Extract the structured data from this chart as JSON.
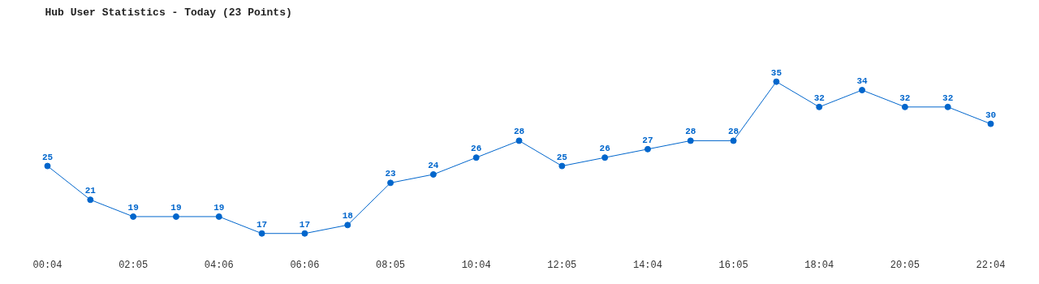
{
  "chart_data": {
    "type": "line",
    "title": "Hub User Statistics - Today (23 Points)",
    "categories": [
      "00:04",
      null,
      "02:05",
      null,
      "04:06",
      null,
      "06:06",
      null,
      "08:05",
      null,
      "10:04",
      null,
      "12:05",
      null,
      "14:04",
      null,
      "16:05",
      null,
      "18:04",
      null,
      "20:05",
      null,
      "22:04"
    ],
    "series": [
      {
        "color": "#0066cc",
        "values": [
          25,
          21,
          19,
          19,
          19,
          17,
          17,
          18,
          23,
          24,
          26,
          28,
          25,
          26,
          27,
          28,
          28,
          35,
          32,
          34,
          32,
          32,
          30
        ]
      }
    ],
    "data_labels": true,
    "marker": "circle",
    "line_style": "solid",
    "grid": false
  }
}
